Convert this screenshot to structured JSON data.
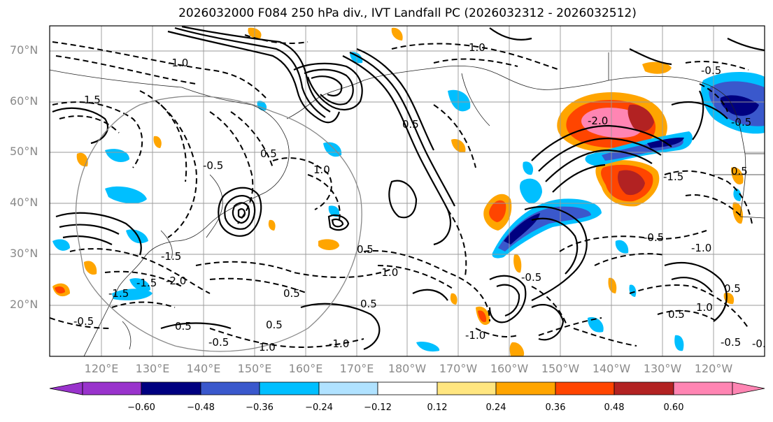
{
  "title": "2026032000 F084 250 hPa div., IVT Landfall PC (2026032312 - 2026032512)",
  "lat_labels": [
    "70°N",
    "60°N",
    "50°N",
    "40°N",
    "30°N",
    "20°N"
  ],
  "lon_labels": [
    "120°E",
    "130°E",
    "140°E",
    "150°E",
    "160°E",
    "170°E",
    "180°W",
    "170°W",
    "160°W",
    "150°W",
    "140°W",
    "130°W",
    "120°W"
  ],
  "colorbar": {
    "ticks": [
      "−0.60",
      "−0.48",
      "−0.36",
      "−0.24",
      "−0.12",
      "0.12",
      "0.24",
      "0.36",
      "0.48",
      "0.60"
    ],
    "colors": [
      "#9933cc",
      "#000080",
      "#3a58cc",
      "#00bfff",
      "#b0e2ff",
      "#ffffff",
      "#ffe680",
      "#ffa500",
      "#ff4500",
      "#b22222",
      "#ff85b3"
    ]
  },
  "contour_labels": [
    "-1.0",
    "-1.5",
    "-2.0",
    "-0.5",
    "0.5",
    "1.0",
    "1.5",
    "-2.0",
    "-1.5",
    "-1.0",
    "-0.5",
    "0.5",
    "1.0",
    "-0.5",
    "0.5",
    "-1.0",
    "-1.5",
    "0.5",
    "-0.5",
    "-1.0",
    "0.5",
    "1.0",
    "-1.5",
    "0.5",
    "-0.5",
    "-1.0",
    "0.5",
    "-0.5",
    "0.5",
    "-0.5",
    "0.5",
    "1.0",
    "0.5",
    "-0.5",
    "-0.5"
  ]
}
